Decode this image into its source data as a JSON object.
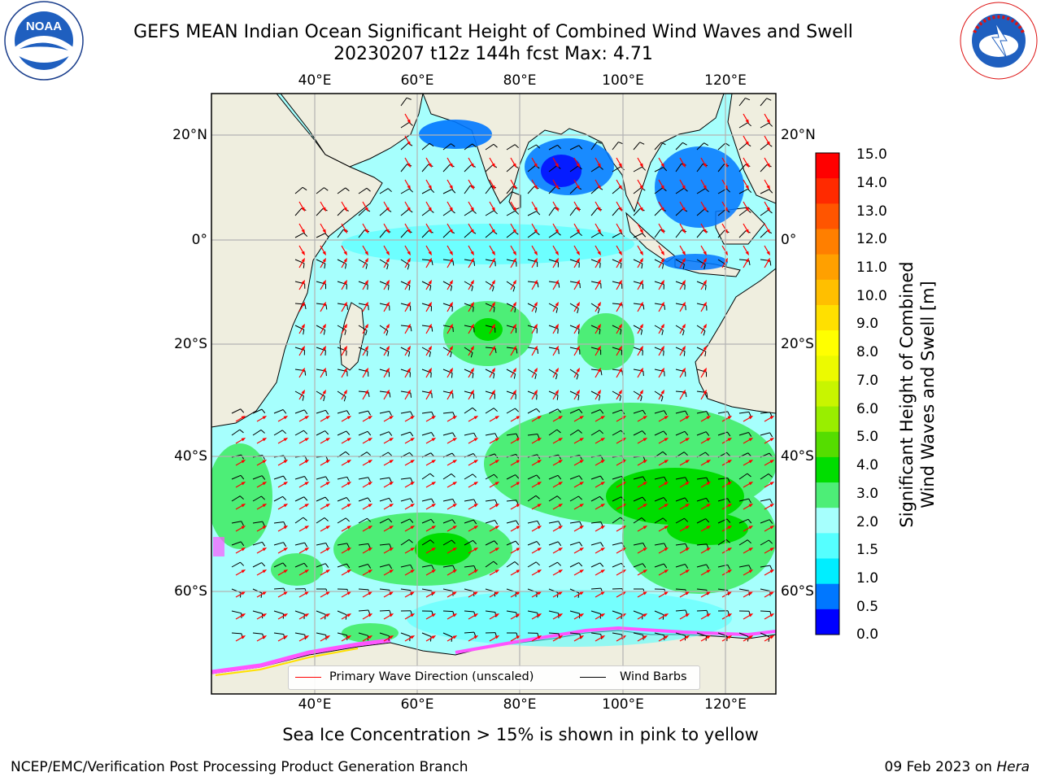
{
  "header": {
    "title_line1": "GEFS MEAN Indian Ocean Significant Height of Combined Wind Waves and Swell",
    "title_line2": "20230207 t12z 144h fcst   Max: 4.71"
  },
  "logos": {
    "noaa": {
      "icon": "noaa-logo-icon",
      "text": "NOAA"
    },
    "nws": {
      "icon": "nws-logo-icon",
      "text": "NATIONAL WEATHER SERVICE"
    }
  },
  "map": {
    "lon_ticks": [
      "40°E",
      "60°E",
      "80°E",
      "100°E",
      "120°E"
    ],
    "lat_ticks_left": [
      "20°N",
      "0°",
      "20°S",
      "40°S",
      "60°S"
    ],
    "lat_ticks_right": [
      "20°N",
      "0°",
      "20°S",
      "40°S",
      "60°S"
    ],
    "colors": {
      "land": "#efeedf",
      "ocean_base": "#a6fffd",
      "ice": "#ff55ff",
      "grid": "#b3b3b3"
    }
  },
  "colorbar": {
    "title_line1": "Significant Height of Combined",
    "title_line2": "Wind Waves and Swell [m]",
    "labels": [
      "15.0",
      "14.0",
      "13.0",
      "12.0",
      "11.0",
      "10.0",
      "9.0",
      "8.0",
      "7.0",
      "6.0",
      "5.0",
      "4.0",
      "3.0",
      "2.0",
      "1.5",
      "1.0",
      "0.5",
      "0.0"
    ],
    "colors_top_to_bottom": [
      "#ff0000",
      "#ff2a00",
      "#ff5500",
      "#ff7f00",
      "#ffa000",
      "#ffbf00",
      "#ffe000",
      "#ffff00",
      "#ecfa00",
      "#c8f500",
      "#99ee00",
      "#55dd00",
      "#00dd00",
      "#4dee77",
      "#a6fffd",
      "#55ffff",
      "#00eeff",
      "#0077ff",
      "#0000ff"
    ]
  },
  "legend": {
    "wave_label": "Primary Wave Direction (unscaled)",
    "wave_color": "#ff0000",
    "barb_label": "Wind Barbs",
    "barb_color": "#000000"
  },
  "caption": "Sea Ice Concentration > 15% is shown in pink to yellow",
  "footer": {
    "left": "NCEP/EMC/Verification Post Processing Product Generation Branch",
    "right_date": "09 Feb 2023 on ",
    "right_host": "Hera"
  }
}
